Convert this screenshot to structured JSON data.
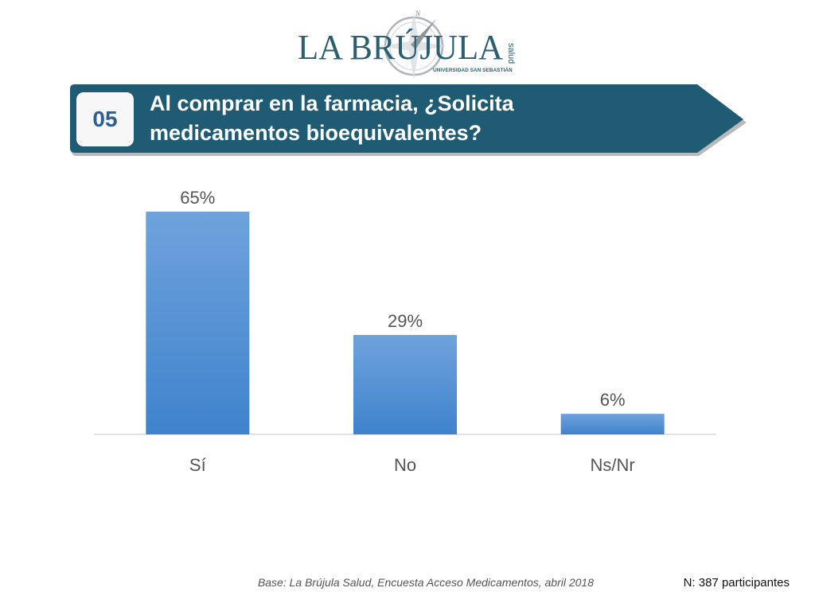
{
  "logo": {
    "name": "LA BRÚJULA",
    "vertical_text": "salud",
    "subtitle": "UNIVERSIDAD SAN SEBASTIÁN",
    "compass_letter": "N"
  },
  "question": {
    "number": "05",
    "line1": "Al comprar en la farmacia, ¿Solicita",
    "line2": "medicamentos bioequivalentes?"
  },
  "chart_data": {
    "type": "bar",
    "categories": [
      "Sí",
      "No",
      "Ns/Nr"
    ],
    "values": [
      65,
      29,
      6
    ],
    "data_labels": [
      "65%",
      "29%",
      "6%"
    ],
    "ylim": [
      0,
      65
    ],
    "grid": false,
    "legend": "none"
  },
  "footer": {
    "base": "Base: La Brújula Salud, Encuesta Acceso Medicamentos, abril 2018",
    "n": "N: 387 participantes"
  },
  "colors": {
    "banner": "#1f5c73",
    "banner_shadow": "#b9b9b9",
    "bar_top": "#6fa2dc",
    "bar_bottom": "#3f83cd",
    "badge_text": "#2f5e8f",
    "logo": "#2a5f73"
  }
}
